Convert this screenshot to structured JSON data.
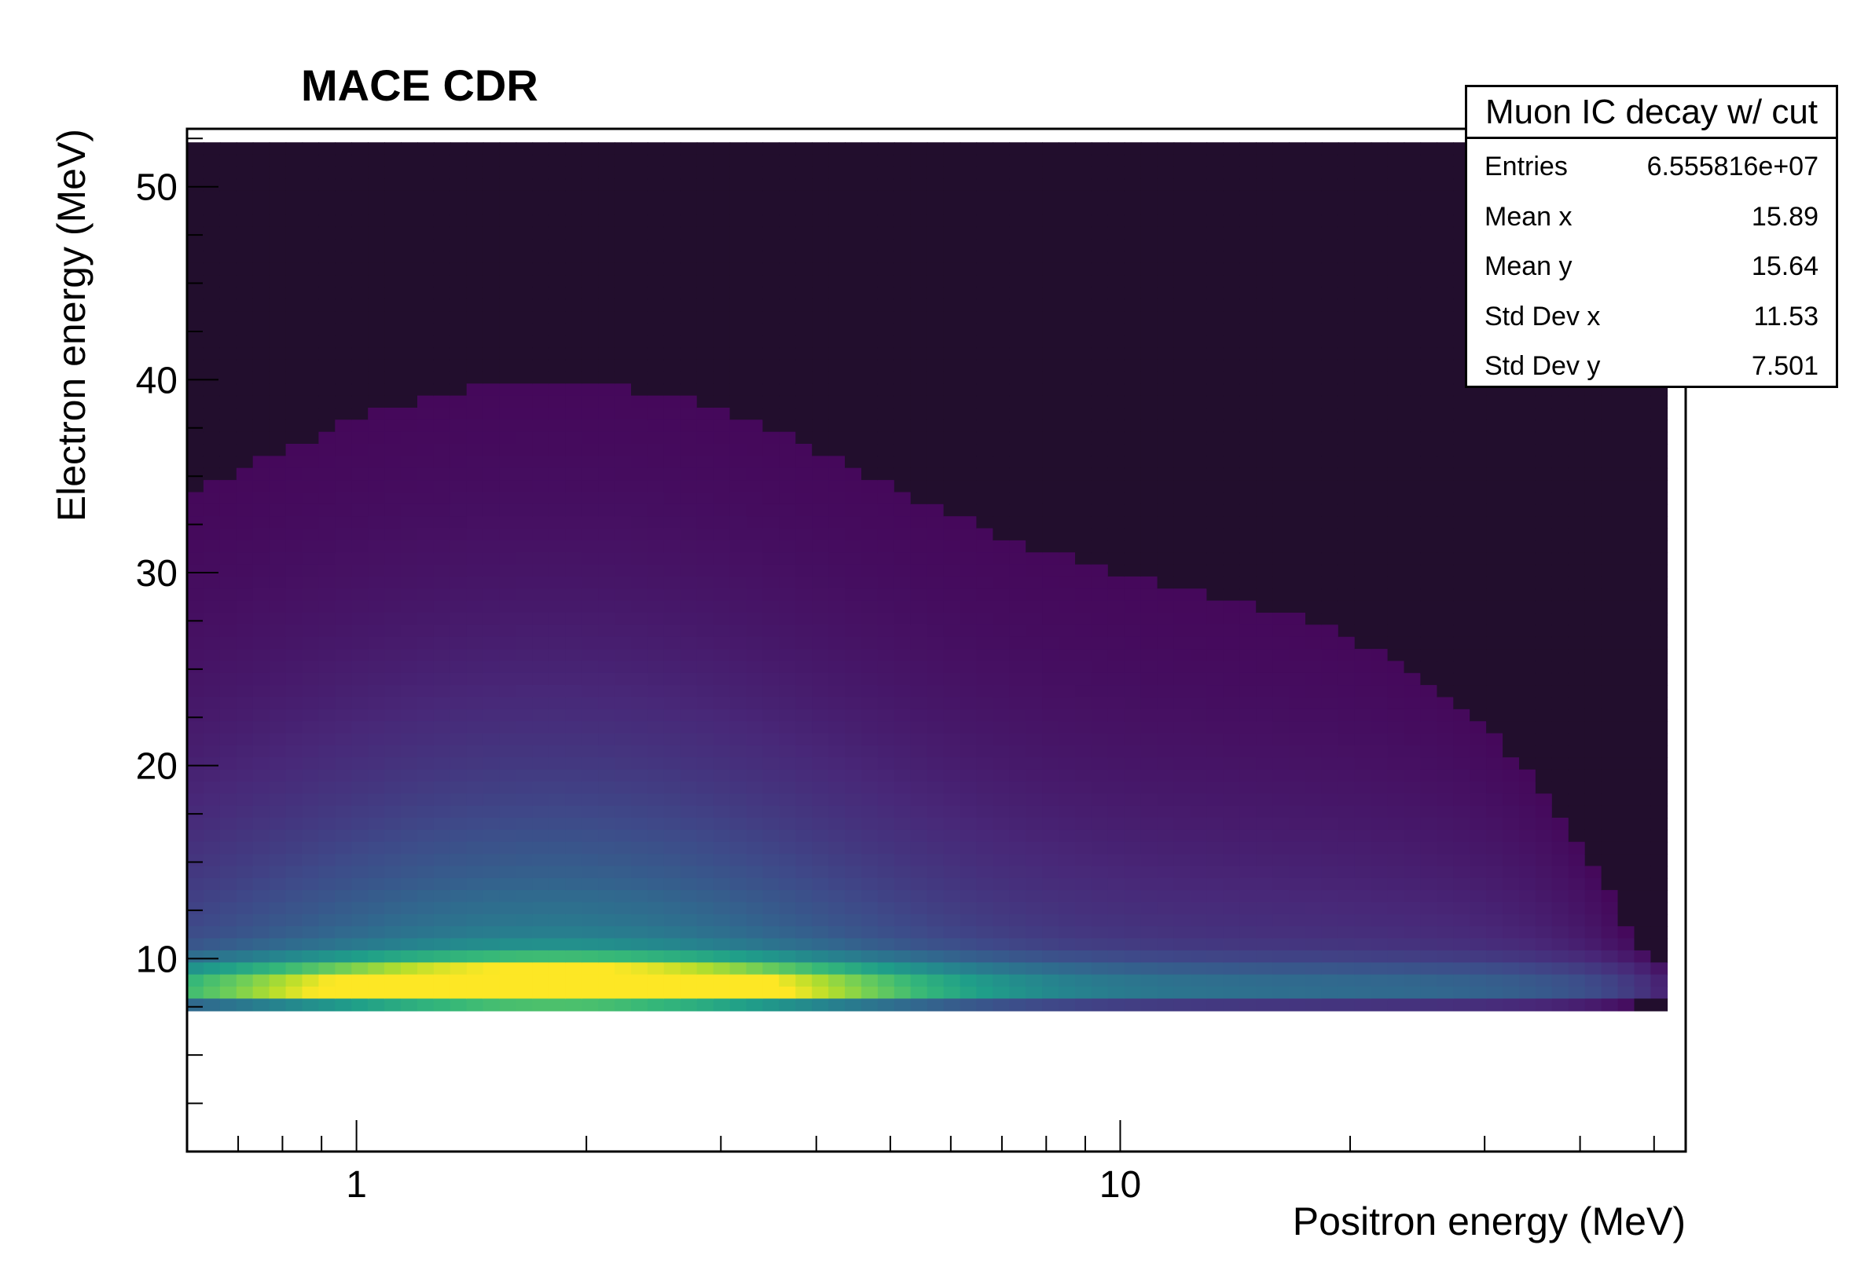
{
  "chart_data": {
    "type": "heatmap",
    "title": "MACE CDR",
    "xlabel": "Positron energy (MeV)",
    "ylabel": "Electron energy (MeV)",
    "x_scale": "log",
    "xlim": [
      0.6,
      55
    ],
    "ylim": [
      0,
      53
    ],
    "x_ticks": [
      1,
      10
    ],
    "x_tick_labels": [
      "1",
      "10"
    ],
    "y_ticks": [
      10,
      20,
      30,
      40,
      50
    ],
    "y_tick_labels": [
      "10",
      "20",
      "30",
      "40",
      "50"
    ],
    "grid": false,
    "colormap": "viridis",
    "populated_region": {
      "x": [
        0.6,
        52
      ],
      "y": [
        7.3,
        52.3
      ]
    },
    "peak": {
      "x": 1.8,
      "y": 8.5
    },
    "stats": {
      "name": "Muon IC decay w/ cut",
      "rows": [
        {
          "label": "Entries",
          "value": "6.555816e+07"
        },
        {
          "label": "Mean x",
          "value": "15.89"
        },
        {
          "label": "Mean y",
          "value": "15.64"
        },
        {
          "label": "Std Dev x",
          "value": "11.53"
        },
        {
          "label": "Std Dev y",
          "value": "7.501"
        }
      ]
    }
  }
}
